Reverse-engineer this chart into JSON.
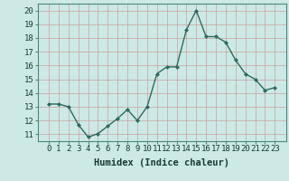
{
  "x": [
    0,
    1,
    2,
    3,
    4,
    5,
    6,
    7,
    8,
    9,
    10,
    11,
    12,
    13,
    14,
    15,
    16,
    17,
    18,
    19,
    20,
    21,
    22,
    23
  ],
  "y": [
    13.2,
    13.2,
    13.0,
    11.7,
    10.8,
    11.05,
    11.6,
    12.15,
    12.8,
    12.0,
    13.0,
    15.4,
    15.9,
    15.9,
    18.6,
    20.0,
    18.1,
    18.1,
    17.7,
    16.4,
    15.4,
    15.0,
    14.2,
    14.4
  ],
  "line_color": "#2e6b5e",
  "marker": "D",
  "markersize": 2.0,
  "linewidth": 1.0,
  "bg_color": "#cce9e5",
  "grid_color": "#b8d8d4",
  "xlabel": "Humidex (Indice chaleur)",
  "ylim": [
    10.5,
    20.5
  ],
  "yticks": [
    11,
    12,
    13,
    14,
    15,
    16,
    17,
    18,
    19,
    20
  ],
  "xticks": [
    0,
    1,
    2,
    3,
    4,
    5,
    6,
    7,
    8,
    9,
    10,
    11,
    12,
    13,
    14,
    15,
    16,
    17,
    18,
    19,
    20,
    21,
    22,
    23
  ],
  "xlabel_fontsize": 7.5,
  "tick_fontsize": 6.5,
  "spine_color": "#4a8a7a"
}
